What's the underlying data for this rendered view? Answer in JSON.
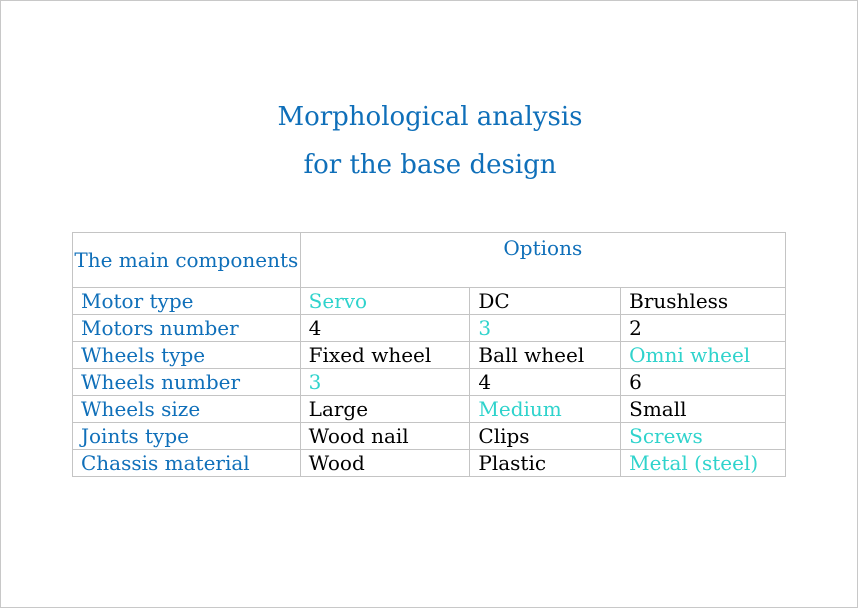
{
  "document": {
    "title_line1": "Morphological analysis",
    "title_line2": "for the base design"
  },
  "table": {
    "header_components": "The main components",
    "header_options": "Options",
    "rows": [
      {
        "label": "Motor type",
        "options": [
          "Servo",
          "DC",
          "Brushless"
        ],
        "selected": 0
      },
      {
        "label": "Motors number",
        "options": [
          "4",
          "3",
          "2"
        ],
        "selected": 1
      },
      {
        "label": "Wheels type",
        "options": [
          "Fixed wheel",
          "Ball wheel",
          "Omni wheel"
        ],
        "selected": 2
      },
      {
        "label": "Wheels number",
        "options": [
          "3",
          "4",
          "6"
        ],
        "selected": 0
      },
      {
        "label": "Wheels size",
        "options": [
          "Large",
          "Medium",
          "Small"
        ],
        "selected": 1
      },
      {
        "label": "Joints type",
        "options": [
          "Wood nail",
          "Clips",
          "Screws"
        ],
        "selected": 2
      },
      {
        "label": "Chassis material",
        "options": [
          "Wood",
          "Plastic",
          "Metal (steel)"
        ],
        "selected": 2
      }
    ]
  },
  "colors": {
    "heading": "#0f6fb9",
    "selected_option": "#2fd3cc",
    "text": "#000000",
    "border": "#c4c4c4"
  }
}
